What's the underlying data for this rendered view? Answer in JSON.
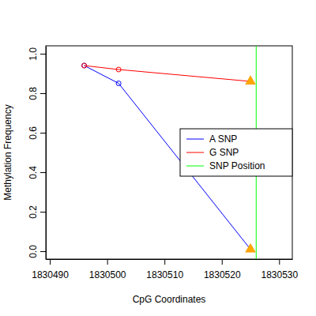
{
  "chart_data": {
    "type": "line",
    "x_label": "CpG Coordinates",
    "y_label": "Methylation Frequency",
    "xlim": [
      1830489.3,
      1830532.3
    ],
    "xticks": [
      1830490,
      1830500,
      1830510,
      1830520,
      1830530
    ],
    "ylim": [
      -0.04,
      1.04
    ],
    "yticks": [
      {
        "value": 0,
        "label": "0.0"
      },
      0.2,
      0.4,
      0.6,
      0.8,
      {
        "value": 1,
        "label": "1.0"
      }
    ],
    "grid": false,
    "legend": "right",
    "series": [
      {
        "name": "A SNP",
        "color": "#0000ff",
        "marker": "circle",
        "x": [
          1830496,
          1830502,
          1830525
        ],
        "values": [
          0.94,
          0.85,
          0.01
        ]
      },
      {
        "name": "G SNP",
        "color": "#ff0000",
        "marker": "circle",
        "x": [
          1830496,
          1830502,
          1830525
        ],
        "values": [
          0.94,
          0.92,
          0.86
        ]
      },
      {
        "name": "SNP Position",
        "color": "#00ff00",
        "type": "vline",
        "x": [
          1830526
        ]
      }
    ]
  }
}
